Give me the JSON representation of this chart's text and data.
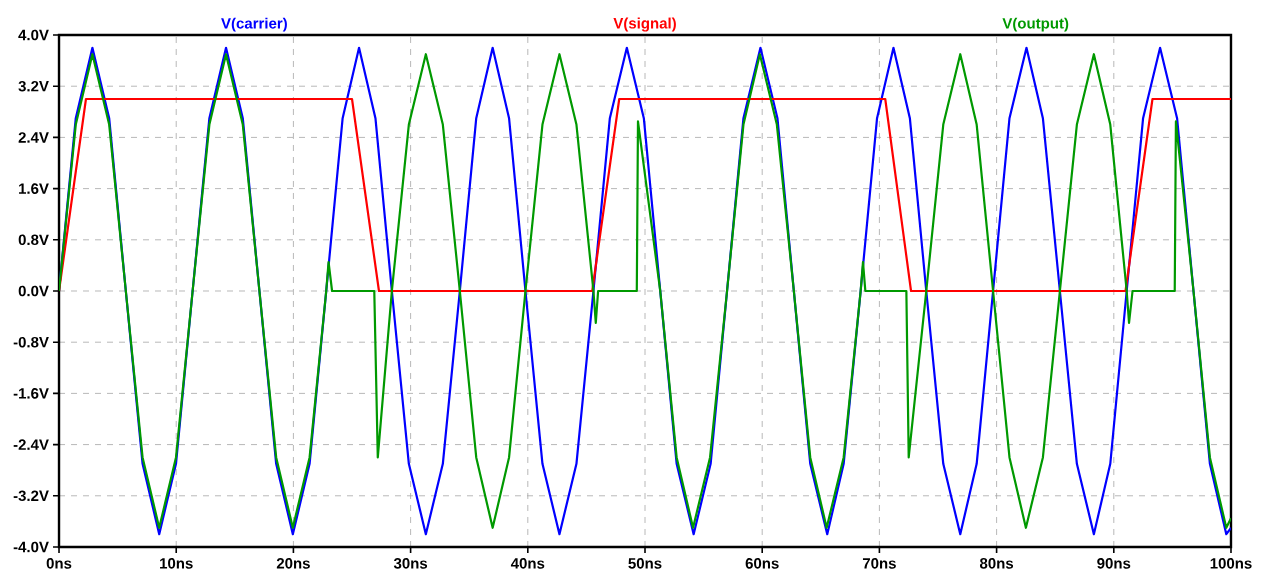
{
  "chart_data": {
    "type": "line",
    "grid": true,
    "marker": "none",
    "line_style": "solid",
    "xlim": [
      0,
      100
    ],
    "ylim": [
      -4,
      4
    ],
    "xticks": [
      {
        "value": 0,
        "label": "0ns"
      },
      {
        "value": 10,
        "label": "10ns"
      },
      {
        "value": 20,
        "label": "20ns"
      },
      {
        "value": 30,
        "label": "30ns"
      },
      {
        "value": 40,
        "label": "40ns"
      },
      {
        "value": 50,
        "label": "50ns"
      },
      {
        "value": 60,
        "label": "60ns"
      },
      {
        "value": 70,
        "label": "70ns"
      },
      {
        "value": 80,
        "label": "80ns"
      },
      {
        "value": 90,
        "label": "90ns"
      },
      {
        "value": 100,
        "label": "100ns"
      }
    ],
    "yticks": [
      {
        "value": -4,
        "label": "-4.0V"
      },
      {
        "value": -3.2,
        "label": "-3.2V"
      },
      {
        "value": -2.4,
        "label": "-2.4V"
      },
      {
        "value": -1.6,
        "label": "-1.6V"
      },
      {
        "value": -0.8,
        "label": "-0.8V"
      },
      {
        "value": 0,
        "label": "0.0V"
      },
      {
        "value": 0.8,
        "label": "0.8V"
      },
      {
        "value": 1.6,
        "label": "1.6V"
      },
      {
        "value": 2.4,
        "label": "2.4V"
      },
      {
        "value": 3.2,
        "label": "3.2V"
      },
      {
        "value": 4,
        "label": "4.0V"
      }
    ],
    "series": [
      {
        "name": "V(carrier)",
        "color": "#0000ff",
        "x": [
          0,
          1.43,
          2.85,
          4.28,
          5.7,
          7.13,
          8.55,
          9.98,
          11.4,
          12.83,
          14.25,
          15.68,
          17.1,
          18.53,
          19.95,
          21.38,
          22.8,
          24.2,
          25.6,
          27.0,
          28.4,
          29.85,
          31.3,
          32.75,
          34.2,
          35.6,
          37.0,
          38.4,
          39.8,
          41.25,
          42.7,
          44.15,
          45.6,
          47.0,
          48.45,
          49.9,
          51.3,
          52.7,
          54.15,
          55.6,
          57.0,
          58.4,
          59.85,
          61.3,
          62.7,
          64.1,
          65.55,
          66.95,
          68.4,
          69.8,
          71.2,
          72.6,
          74.0,
          75.45,
          76.9,
          78.3,
          79.7,
          81.1,
          82.55,
          83.95,
          85.4,
          86.85,
          88.3,
          89.7,
          91.1,
          92.5,
          93.95,
          95.4,
          96.8,
          98.2,
          99.6,
          100
        ],
        "values": [
          0,
          2.7,
          3.8,
          2.7,
          0,
          -2.7,
          -3.8,
          -2.7,
          0,
          2.7,
          3.8,
          2.7,
          0,
          -2.7,
          -3.8,
          -2.7,
          0,
          2.7,
          3.8,
          2.7,
          0,
          -2.7,
          -3.8,
          -2.7,
          0,
          2.7,
          3.8,
          2.7,
          0,
          -2.7,
          -3.8,
          -2.7,
          0,
          2.7,
          3.8,
          2.7,
          0,
          -2.7,
          -3.8,
          -2.7,
          0,
          2.7,
          3.8,
          2.7,
          0,
          -2.7,
          -3.8,
          -2.7,
          0,
          2.7,
          3.8,
          2.7,
          0,
          -2.7,
          -3.8,
          -2.7,
          0,
          2.7,
          3.8,
          2.7,
          0,
          -2.7,
          -3.8,
          -2.7,
          0,
          2.7,
          3.8,
          2.7,
          0,
          -2.7,
          -3.8,
          -3.7
        ]
      },
      {
        "name": "V(signal)",
        "color": "#ff0000",
        "x": [
          0,
          2.3,
          25,
          27.3,
          45.5,
          47.8,
          70.5,
          72.7,
          91.0,
          93.3,
          100
        ],
        "values": [
          0,
          3,
          3,
          0,
          0,
          3,
          3,
          0,
          0,
          3,
          3
        ]
      },
      {
        "name": "V(output)",
        "color": "#009900",
        "x": [
          0,
          1.43,
          2.85,
          4.28,
          5.7,
          7.13,
          8.55,
          9.98,
          11.4,
          12.83,
          14.25,
          15.68,
          17.1,
          18.53,
          19.95,
          21.38,
          22.8,
          23.0,
          23.3,
          26.9,
          27.2,
          28.4,
          29.85,
          31.3,
          32.75,
          34.2,
          35.6,
          37.0,
          38.4,
          39.8,
          41.25,
          42.7,
          44.15,
          45.6,
          45.8,
          46.0,
          49.3,
          49.4,
          51.3,
          52.7,
          54.1,
          55.55,
          57.0,
          58.4,
          59.8,
          61.25,
          62.7,
          64.1,
          65.5,
          66.95,
          68.4,
          68.6,
          68.8,
          72.3,
          72.5,
          74.0,
          75.45,
          76.9,
          78.3,
          79.7,
          81.1,
          82.5,
          83.95,
          85.4,
          86.85,
          88.3,
          89.7,
          91.1,
          91.3,
          91.6,
          95.2,
          95.3,
          96.8,
          98.2,
          99.6,
          100
        ],
        "values": [
          0,
          2.6,
          3.7,
          2.6,
          0,
          -2.6,
          -3.7,
          -2.6,
          0,
          2.6,
          3.7,
          2.6,
          0,
          -2.6,
          -3.7,
          -2.6,
          0,
          0.45,
          0,
          0,
          -2.6,
          0,
          2.6,
          3.7,
          2.6,
          0,
          -2.6,
          -3.7,
          -2.6,
          0,
          2.6,
          3.7,
          2.6,
          0,
          -0.5,
          0,
          0,
          2.65,
          0,
          -2.6,
          -3.7,
          -2.6,
          0,
          2.6,
          3.7,
          2.6,
          0,
          -2.6,
          -3.7,
          -2.6,
          0,
          0.45,
          0,
          0,
          -2.6,
          0,
          2.6,
          3.7,
          2.6,
          0,
          -2.6,
          -3.7,
          -2.6,
          0,
          2.6,
          3.7,
          2.6,
          0,
          -0.5,
          0,
          0,
          2.65,
          0,
          -2.6,
          -3.7,
          -3.55
        ]
      }
    ]
  }
}
